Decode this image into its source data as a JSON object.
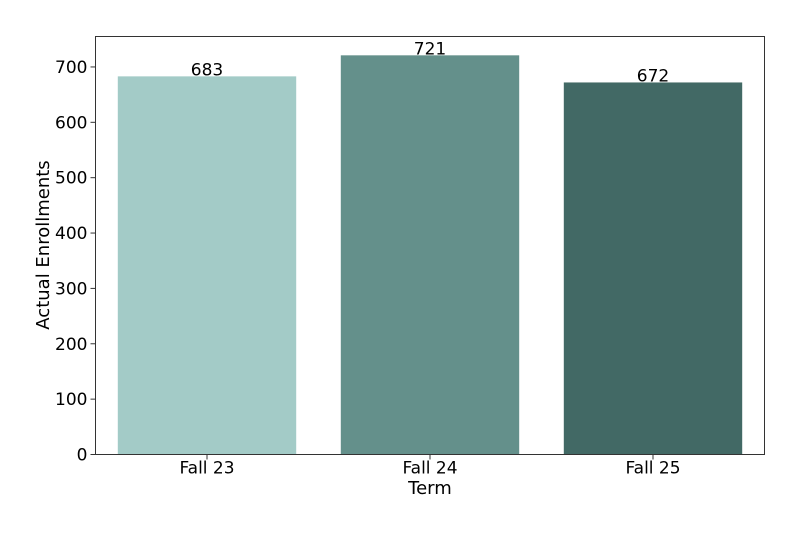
{
  "chart_data": {
    "type": "bar",
    "xlabel": "Term",
    "ylabel": "Actual Enrollments",
    "categories": [
      "Fall 23",
      "Fall 24",
      "Fall 25"
    ],
    "values": [
      683,
      721,
      672
    ],
    "data_labels": [
      "683",
      "721",
      "672"
    ],
    "colors": [
      "#a3cbc7",
      "#64908b",
      "#426965"
    ],
    "ylim": [
      0,
      755
    ],
    "yticks": [
      0,
      100,
      200,
      300,
      400,
      500,
      600,
      700
    ],
    "grid": false,
    "legend": "none"
  }
}
